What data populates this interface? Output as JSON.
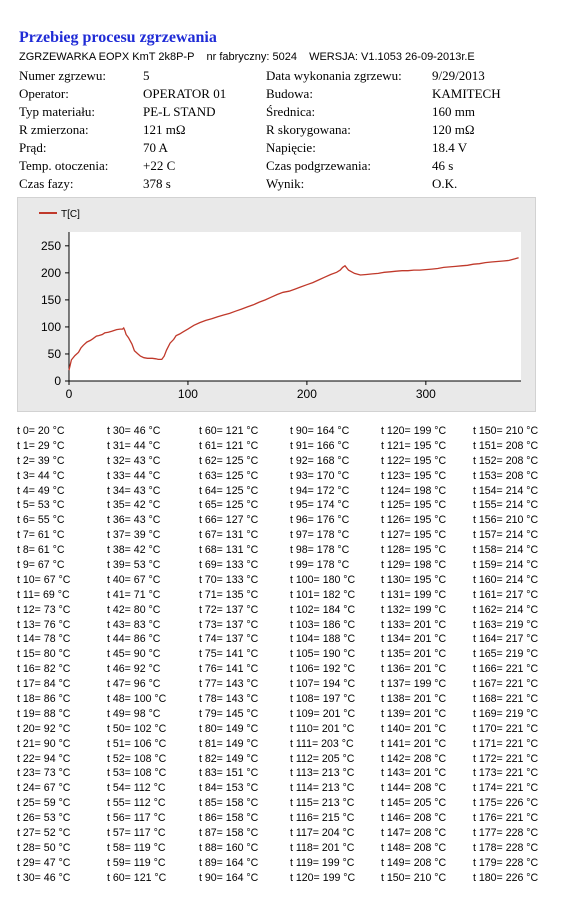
{
  "report": {
    "title": "Przebieg procesu zgrzewania",
    "device": "ZGRZEWARKA EOPX  KmT 2k8P-P",
    "serial": "nr fabryczny:  5024",
    "version": "WERSJA:  V1.1053 26-09-2013r.E"
  },
  "info": [
    {
      "label": "Numer zgrzewu:",
      "value": "5",
      "label2": "Data wykonania zgrzewu:",
      "value2": "9/29/2013"
    },
    {
      "label": "Operator:",
      "value": "OPERATOR 01",
      "label2": "Budowa:",
      "value2": "KAMITECH"
    },
    {
      "label": "Typ materiału:",
      "value": "PE-L STAND",
      "label2": "Średnica:",
      "value2": "160 mm"
    },
    {
      "label": "R zmierzona:",
      "value": "121 mΩ",
      "label2": "R skorygowana:",
      "value2": "120 mΩ"
    },
    {
      "label": "Prąd:",
      "value": "70 A",
      "label2": "Napięcie:",
      "value2": "18.4 V"
    },
    {
      "label": "Temp. otoczenia:",
      "value": "+22 C",
      "label2": "Czas podgrzewania:",
      "value2": "46 s"
    },
    {
      "label": "Czas fazy:",
      "value": "378 s",
      "label2": "Wynik:",
      "value2": "O.K."
    }
  ],
  "chart_data": {
    "type": "line",
    "title": "",
    "xlabel": "",
    "ylabel": "",
    "xlim": [
      0,
      380
    ],
    "ylim": [
      0,
      270
    ],
    "xticks": [
      0,
      100,
      200,
      300
    ],
    "yticks": [
      0,
      50,
      100,
      150,
      200,
      250
    ],
    "legend": "top-left",
    "grid": false,
    "series": [
      {
        "name": "T[C]",
        "color": "#c0392b",
        "x": [
          0,
          2,
          5,
          8,
          10,
          12,
          15,
          18,
          20,
          23,
          25,
          28,
          30,
          33,
          36,
          40,
          43,
          45,
          46,
          47,
          48,
          50,
          53,
          55,
          58,
          60,
          63,
          66,
          70,
          73,
          75,
          78,
          80,
          82,
          85,
          88,
          90,
          93,
          96,
          100,
          105,
          110,
          115,
          120,
          125,
          130,
          135,
          140,
          145,
          150,
          155,
          160,
          165,
          170,
          175,
          180,
          185,
          190,
          195,
          200,
          205,
          210,
          215,
          220,
          225,
          228,
          230,
          232,
          235,
          240,
          245,
          250,
          255,
          260,
          265,
          270,
          275,
          280,
          285,
          290,
          295,
          300,
          305,
          310,
          315,
          320,
          325,
          330,
          335,
          340,
          345,
          350,
          355,
          360,
          365,
          370,
          375,
          378
        ],
        "y": [
          20,
          39,
          47,
          53,
          61,
          66,
          72,
          75,
          78,
          83,
          84,
          86,
          89,
          90,
          92,
          95,
          96,
          96,
          98,
          93,
          86,
          80,
          68,
          56,
          50,
          46,
          43,
          42,
          42,
          41,
          40,
          40,
          46,
          57,
          70,
          77,
          84,
          87,
          91,
          96,
          103,
          108,
          112,
          115,
          119,
          122,
          125,
          129,
          133,
          137,
          141,
          146,
          150,
          155,
          160,
          164,
          166,
          170,
          174,
          178,
          182,
          187,
          192,
          197,
          201,
          205,
          210,
          213,
          205,
          199,
          196,
          197,
          198,
          199,
          201,
          202,
          203,
          204,
          204,
          205,
          205,
          206,
          207,
          208,
          210,
          211,
          212,
          213,
          214,
          216,
          217,
          219,
          220,
          221,
          222,
          223,
          226,
          228
        ]
      }
    ]
  },
  "table": {
    "columns": [
      [
        "t 0= 20 °C",
        "t 1= 29 °C",
        "t 2= 39 °C",
        "t 3= 44 °C",
        "t 4= 49 °C",
        "t 5= 53 °C",
        "t 6= 55 °C",
        "t 7= 61 °C",
        "t 8= 61 °C",
        "t 9= 67 °C",
        "t 10= 67 °C",
        "t 11= 69 °C",
        "t 12= 73 °C",
        "t 13= 76 °C",
        "t 14= 78 °C",
        "t 15= 80 °C",
        "t 16= 82 °C",
        "t 17= 84 °C",
        "t 18= 86 °C",
        "t 19= 88 °C",
        "t 20= 92 °C",
        "t 21= 90 °C",
        "t 22= 94 °C",
        "t 23= 73 °C",
        "t 24= 67 °C",
        "t 25= 59 °C",
        "t 26= 53 °C",
        "t 27= 52 °C",
        "t 28= 50 °C",
        "t 29= 47 °C",
        "t 30= 46 °C"
      ],
      [
        "t 30= 46 °C",
        "t 31= 44 °C",
        "t 32= 43 °C",
        "t 33= 44 °C",
        "t 34= 43 °C",
        "t 35= 42 °C",
        "t 36= 43 °C",
        "t 37= 39 °C",
        "t 38= 42 °C",
        "t 39= 53 °C",
        "t 40= 67 °C",
        "t 41= 71 °C",
        "t 42= 80 °C",
        "t 43= 83 °C",
        "t 44= 86 °C",
        "t 45= 90 °C",
        "t 46= 92 °C",
        "t 47= 96 °C",
        "t 48= 100 °C",
        "t 49= 98 °C",
        "t 50= 102 °C",
        "t 51= 106 °C",
        "t 52= 108 °C",
        "t 53= 108 °C",
        "t 54= 112 °C",
        "t 55= 112 °C",
        "t 56= 117 °C",
        "t 57= 117 °C",
        "t 58= 119 °C",
        "t 59= 119 °C",
        "t 60= 121 °C"
      ],
      [
        "t 60= 121 °C",
        "t 61= 121 °C",
        "t 62= 125 °C",
        "t 63= 125 °C",
        "t 64= 125 °C",
        "t 65= 125 °C",
        "t 66= 127 °C",
        "t 67= 131 °C",
        "t 68= 131 °C",
        "t 69= 133 °C",
        "t 70= 133 °C",
        "t 71= 135 °C",
        "t 72= 137 °C",
        "t 73= 137 °C",
        "t 74= 137 °C",
        "t 75= 141 °C",
        "t 76= 141 °C",
        "t 77= 143 °C",
        "t 78= 143 °C",
        "t 79= 145 °C",
        "t 80= 149 °C",
        "t 81= 149 °C",
        "t 82= 149 °C",
        "t 83= 151 °C",
        "t 84= 153 °C",
        "t 85= 158 °C",
        "t 86= 158 °C",
        "t 87= 158 °C",
        "t 88= 160 °C",
        "t 89= 164 °C",
        "t 90= 164 °C"
      ],
      [
        "t 90= 164 °C",
        "t 91= 166 °C",
        "t 92= 168 °C",
        "t 93= 170 °C",
        "t 94= 172 °C",
        "t 95= 174 °C",
        "t 96= 176 °C",
        "t 97= 178 °C",
        "t 98= 178 °C",
        "t 99= 178 °C",
        "t 100= 180 °C",
        "t 101= 182 °C",
        "t 102= 184 °C",
        "t 103= 186 °C",
        "t 104= 188 °C",
        "t 105= 190 °C",
        "t 106= 192 °C",
        "t 107= 194 °C",
        "t 108= 197 °C",
        "t 109= 201 °C",
        "t 110= 201 °C",
        "t 111= 203 °C",
        "t 112= 205 °C",
        "t 113= 213 °C",
        "t 114= 213 °C",
        "t 115= 213 °C",
        "t 116= 215 °C",
        "t 117= 204 °C",
        "t 118= 201 °C",
        "t 119= 199 °C",
        "t 120= 199 °C"
      ],
      [
        "t 120= 199 °C",
        "t 121= 195 °C",
        "t 122= 195 °C",
        "t 123= 195 °C",
        "t 124= 198 °C",
        "t 125= 195 °C",
        "t 126= 195 °C",
        "t 127= 195 °C",
        "t 128= 195 °C",
        "t 129= 198 °C",
        "t 130= 195 °C",
        "t 131= 199 °C",
        "t 132= 199 °C",
        "t 133= 201 °C",
        "t 134= 201 °C",
        "t 135= 201 °C",
        "t 136= 201 °C",
        "t 137= 199 °C",
        "t 138= 201 °C",
        "t 139= 201 °C",
        "t 140= 201 °C",
        "t 141= 201 °C",
        "t 142= 208 °C",
        "t 143= 201 °C",
        "t 144= 208 °C",
        "t 145= 205 °C",
        "t 146= 208 °C",
        "t 147= 208 °C",
        "t 148= 208 °C",
        "t 149= 208 °C",
        "t 150= 210 °C"
      ],
      [
        "t 150= 210 °C",
        "t 151= 208 °C",
        "t 152= 208 °C",
        "t 153= 208 °C",
        "t 154= 214 °C",
        "t 155= 214 °C",
        "t 156= 210 °C",
        "t 157= 214 °C",
        "t 158= 214 °C",
        "t 159= 214 °C",
        "t 160= 214 °C",
        "t 161= 217 °C",
        "t 162= 214 °C",
        "t 163= 219 °C",
        "t 164= 217 °C",
        "t 165= 219 °C",
        "t 166= 221 °C",
        "t 167= 221 °C",
        "t 168= 221 °C",
        "t 169= 219 °C",
        "t 170= 221 °C",
        "t 171= 221 °C",
        "t 172= 221 °C",
        "t 173= 221 °C",
        "t 174= 221 °C",
        "t 175= 226 °C",
        "t 176= 221 °C",
        "t 177= 228 °C",
        "t 178= 228 °C",
        "t 179= 228 °C",
        "t 180= 226 °C"
      ]
    ]
  }
}
